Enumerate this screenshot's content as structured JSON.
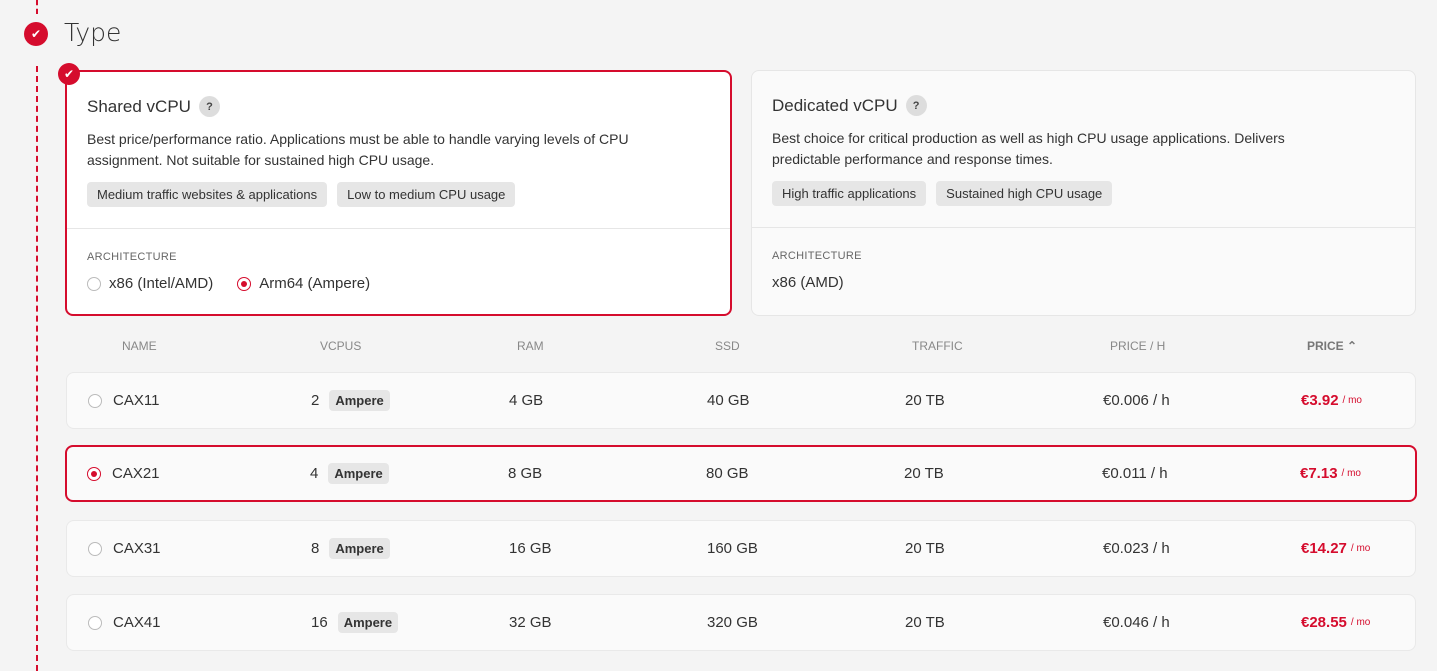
{
  "section": {
    "title": "Type",
    "completed": true
  },
  "cards": [
    {
      "title": "Shared vCPU",
      "help": "?",
      "description": "Best price/performance ratio. Applications must be able to handle varying levels of CPU assignment. Not suitable for sustained high CPU usage.",
      "tags": [
        "Medium traffic websites & applications",
        "Low to medium CPU usage"
      ],
      "arch_label": "ARCHITECTURE",
      "arch_options": [
        {
          "label": "x86 (Intel/AMD)",
          "selected": false
        },
        {
          "label": "Arm64 (Ampere)",
          "selected": true
        }
      ],
      "selected": true
    },
    {
      "title": "Dedicated vCPU",
      "help": "?",
      "description": "Best choice for critical production as well as high CPU usage applications. Delivers predictable performance and response times.",
      "tags": [
        "High traffic applications",
        "Sustained high CPU usage"
      ],
      "arch_label": "ARCHITECTURE",
      "arch_value": "x86 (AMD)",
      "selected": false
    }
  ],
  "table": {
    "headers": [
      "NAME",
      "VCPUS",
      "RAM",
      "SSD",
      "TRAFFIC",
      "PRICE / H",
      "PRICE"
    ],
    "sort": {
      "column": "PRICE",
      "direction": "asc",
      "icon": "chevron-up-icon"
    },
    "rows": [
      {
        "name": "CAX11",
        "vcpus": "2",
        "cpu": "Ampere",
        "ram": "4 GB",
        "ssd": "40 GB",
        "traffic": "20 TB",
        "price_h": "€0.006 / h",
        "price": "€3.92",
        "per": "/ mo",
        "selected": false
      },
      {
        "name": "CAX21",
        "vcpus": "4",
        "cpu": "Ampere",
        "ram": "8 GB",
        "ssd": "80 GB",
        "traffic": "20 TB",
        "price_h": "€0.011 / h",
        "price": "€7.13",
        "per": "/ mo",
        "selected": true
      },
      {
        "name": "CAX31",
        "vcpus": "8",
        "cpu": "Ampere",
        "ram": "16 GB",
        "ssd": "160 GB",
        "traffic": "20 TB",
        "price_h": "€0.023 / h",
        "price": "€14.27",
        "per": "/ mo",
        "selected": false
      },
      {
        "name": "CAX41",
        "vcpus": "16",
        "cpu": "Ampere",
        "ram": "32 GB",
        "ssd": "320 GB",
        "traffic": "20 TB",
        "price_h": "€0.046 / h",
        "price": "€28.55",
        "per": "/ mo",
        "selected": false
      }
    ]
  },
  "colors": {
    "accent": "#d50c2d",
    "background": "#f4f4f4"
  }
}
